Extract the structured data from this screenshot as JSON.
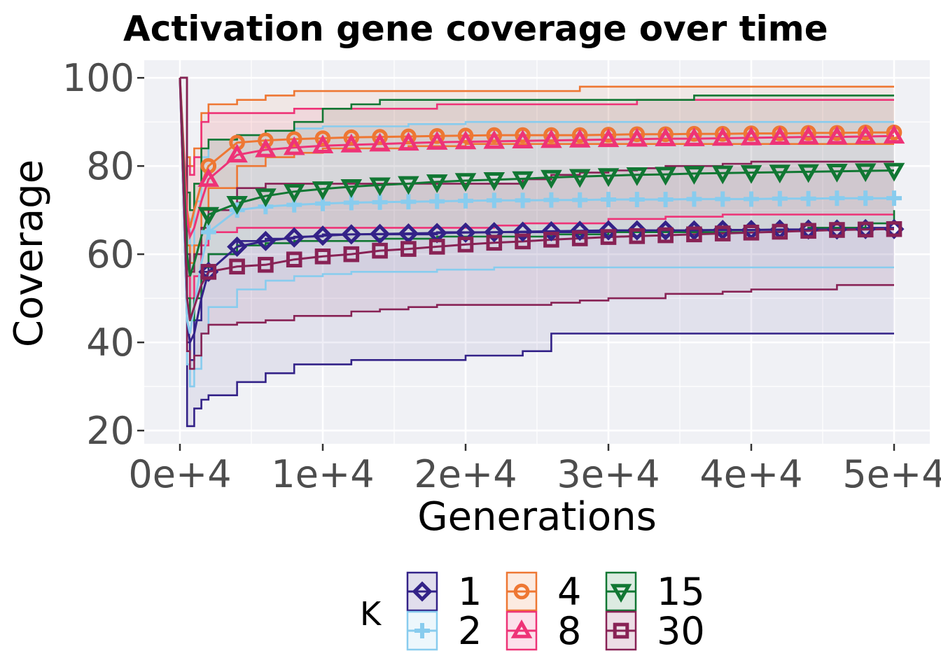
{
  "chart_data": {
    "type": "line",
    "title": "Activation gene coverage over time",
    "xlabel": "Generations",
    "ylabel": "Coverage",
    "xlim": [
      -2500,
      52500
    ],
    "ylim": [
      17,
      104
    ],
    "x_ticks": [
      0,
      10000,
      20000,
      30000,
      40000,
      50000
    ],
    "x_tick_labels": [
      "0e+4",
      "1e+4",
      "2e+4",
      "3e+4",
      "4e+4",
      "5e+4"
    ],
    "y_ticks": [
      20,
      40,
      60,
      80,
      100
    ],
    "y_tick_labels": [
      "20",
      "40",
      "60",
      "80",
      "100"
    ],
    "grid": true,
    "legend": {
      "title": "K",
      "position": "bottom",
      "entries": [
        "1",
        "2",
        "4",
        "8",
        "15",
        "30"
      ]
    },
    "series": [
      {
        "name": "1",
        "color": "#332288",
        "marker": "diamond",
        "x": [
          0,
          500,
          700,
          1000,
          1500,
          2000,
          4000,
          6000,
          8000,
          10000,
          12000,
          14000,
          16000,
          18000,
          20000,
          22000,
          24000,
          26000,
          28000,
          30000,
          32000,
          34000,
          36000,
          38000,
          40000,
          42000,
          44000,
          46000,
          48000,
          50000
        ],
        "median": [
          100,
          45,
          40,
          42,
          50,
          56,
          61.7,
          63,
          63.8,
          64.2,
          64.5,
          64.6,
          64.7,
          64.8,
          64.9,
          65,
          65.1,
          65.2,
          65.3,
          65.4,
          65.4,
          65.4,
          65.4,
          65.5,
          65.5,
          65.6,
          65.6,
          65.6,
          65.7,
          65.7
        ],
        "lower": [
          100,
          21,
          21,
          25,
          27,
          28,
          31,
          33,
          35,
          35,
          36,
          36,
          36,
          36,
          37,
          37,
          38,
          42,
          42,
          42,
          42,
          42,
          42,
          42,
          42,
          42,
          42,
          42,
          42,
          42
        ],
        "upper": [
          100,
          40,
          36,
          45,
          56,
          60,
          63,
          63.5,
          64,
          64.5,
          64.5,
          64.5,
          64.5,
          65,
          65,
          65,
          65,
          65,
          65,
          65,
          65,
          65,
          65.5,
          65.5,
          65.5,
          65.5,
          66,
          66,
          66,
          66
        ]
      },
      {
        "name": "2",
        "color": "#88CCEE",
        "marker": "plus",
        "x": [
          0,
          500,
          700,
          1000,
          1500,
          2000,
          4000,
          6000,
          8000,
          10000,
          12000,
          14000,
          16000,
          18000,
          20000,
          22000,
          24000,
          26000,
          28000,
          30000,
          32000,
          34000,
          36000,
          38000,
          40000,
          42000,
          44000,
          46000,
          48000,
          50000
        ],
        "median": [
          100,
          45,
          42,
          48,
          58,
          65,
          70,
          70.8,
          71.2,
          71.5,
          71.7,
          71.8,
          71.9,
          72,
          72.1,
          72.2,
          72.2,
          72.3,
          72.3,
          72.4,
          72.4,
          72.4,
          72.5,
          72.5,
          72.5,
          72.6,
          72.6,
          72.7,
          72.7,
          72.7
        ],
        "lower": [
          100,
          35,
          30,
          34,
          42,
          48,
          52,
          54,
          55,
          55.5,
          56,
          56,
          56,
          56.5,
          56.5,
          57,
          57,
          57,
          57,
          57,
          57,
          57,
          57,
          57,
          57,
          57,
          57,
          57,
          57,
          57
        ],
        "upper": [
          100,
          68,
          62,
          72,
          82,
          86,
          87,
          88,
          88.5,
          89,
          89,
          89,
          89.5,
          89.5,
          90,
          90,
          90,
          90,
          90,
          90,
          90,
          90,
          90,
          90,
          90,
          90,
          90,
          90,
          90,
          90
        ]
      },
      {
        "name": "4",
        "color": "#EE7733",
        "marker": "circle",
        "x": [
          0,
          500,
          700,
          1000,
          1500,
          2000,
          4000,
          6000,
          8000,
          10000,
          12000,
          14000,
          16000,
          18000,
          20000,
          22000,
          24000,
          26000,
          28000,
          30000,
          32000,
          34000,
          36000,
          38000,
          40000,
          42000,
          44000,
          46000,
          48000,
          50000
        ],
        "median": [
          100,
          70,
          66,
          70,
          76,
          80,
          85.3,
          85.8,
          86.1,
          86.3,
          86.5,
          86.6,
          86.7,
          86.8,
          86.9,
          87,
          87,
          87,
          87,
          87.1,
          87.2,
          87.2,
          87.3,
          87.3,
          87.4,
          87.4,
          87.5,
          87.5,
          87.6,
          87.6
        ],
        "lower": [
          100,
          62,
          58,
          62,
          70,
          75,
          80,
          82,
          83,
          84,
          84,
          84,
          84.5,
          84.5,
          85,
          85,
          85,
          85,
          85,
          85,
          85,
          85,
          85,
          85,
          85,
          85,
          85,
          85,
          85,
          85
        ],
        "upper": [
          100,
          82,
          80,
          84,
          92,
          94,
          95,
          96,
          97,
          97,
          97,
          97,
          97,
          97,
          97,
          97,
          97,
          97,
          98,
          98,
          98,
          98,
          98,
          98,
          98,
          98,
          98,
          98,
          98,
          98
        ]
      },
      {
        "name": "8",
        "color": "#EE3377",
        "marker": "triangle",
        "x": [
          0,
          500,
          700,
          1000,
          1500,
          2000,
          4000,
          6000,
          8000,
          10000,
          12000,
          14000,
          16000,
          18000,
          20000,
          22000,
          24000,
          26000,
          28000,
          30000,
          32000,
          34000,
          36000,
          38000,
          40000,
          42000,
          44000,
          46000,
          48000,
          50000
        ],
        "median": [
          100,
          68,
          64,
          66,
          72,
          77,
          82.5,
          83.7,
          84.2,
          84.6,
          84.8,
          85,
          85.2,
          85.4,
          85.5,
          85.6,
          85.7,
          85.8,
          85.9,
          86,
          86.1,
          86.2,
          86.2,
          86.3,
          86.4,
          86.5,
          86.6,
          86.6,
          86.7,
          86.8
        ],
        "lower": [
          100,
          55,
          50,
          55,
          62,
          65,
          66,
          66,
          66,
          66,
          66,
          66,
          66,
          66,
          66,
          66.5,
          67,
          67,
          67,
          68,
          68,
          68.5,
          68.5,
          69,
          69,
          69,
          69,
          69,
          69,
          69
        ],
        "upper": [
          100,
          80,
          78,
          82,
          90,
          92,
          92,
          92,
          93,
          93,
          93,
          93,
          93,
          94,
          94,
          94,
          94,
          94,
          94,
          94,
          95,
          95,
          95,
          95,
          95,
          95,
          95,
          95,
          95,
          95
        ]
      },
      {
        "name": "15",
        "color": "#117733",
        "marker": "triangle-down",
        "x": [
          0,
          500,
          700,
          1000,
          1500,
          2000,
          4000,
          6000,
          8000,
          10000,
          12000,
          14000,
          16000,
          18000,
          20000,
          22000,
          24000,
          26000,
          28000,
          30000,
          32000,
          34000,
          36000,
          38000,
          40000,
          42000,
          44000,
          46000,
          48000,
          50000
        ],
        "median": [
          100,
          60,
          55,
          58,
          64,
          69,
          71.5,
          73.2,
          74.2,
          74.8,
          75.3,
          75.7,
          76,
          76.4,
          76.7,
          76.9,
          77.1,
          77.4,
          77.6,
          77.8,
          78,
          78.1,
          78.3,
          78.4,
          78.5,
          78.6,
          78.7,
          78.8,
          78.9,
          79
        ],
        "lower": [
          100,
          50,
          45,
          50,
          57,
          60,
          62,
          62.5,
          63,
          63,
          63,
          63.5,
          63.5,
          64,
          64,
          64,
          64,
          64.5,
          64.5,
          65,
          65,
          65,
          65,
          65,
          65,
          65.5,
          66,
          66,
          67,
          70
        ],
        "upper": [
          100,
          74,
          70,
          76,
          84,
          86,
          87,
          88,
          90,
          93,
          94,
          95,
          95,
          95,
          95,
          95,
          95,
          95,
          95,
          95,
          95,
          95,
          96,
          96,
          96,
          96,
          96,
          96,
          96,
          96
        ]
      },
      {
        "name": "30",
        "color": "#882255",
        "marker": "square",
        "x": [
          0,
          500,
          700,
          1000,
          1500,
          2000,
          4000,
          6000,
          8000,
          10000,
          12000,
          14000,
          16000,
          18000,
          20000,
          22000,
          24000,
          26000,
          28000,
          30000,
          32000,
          34000,
          36000,
          38000,
          40000,
          42000,
          44000,
          46000,
          48000,
          50000
        ],
        "median": [
          100,
          50,
          45,
          48,
          53,
          56,
          57.2,
          57.6,
          58.8,
          59.5,
          60,
          60.8,
          61.2,
          61.7,
          62.2,
          62.6,
          62.9,
          63.3,
          63.6,
          63.9,
          64.1,
          64.3,
          64.5,
          64.7,
          64.9,
          65.1,
          65.3,
          65.5,
          65.6,
          65.7
        ],
        "lower": [
          100,
          38,
          34,
          37,
          42,
          44,
          44.5,
          45,
          46,
          46,
          47,
          47.5,
          48,
          48.5,
          48.5,
          48.5,
          48.5,
          49,
          49.5,
          50,
          50,
          51,
          51,
          51.5,
          52,
          52,
          52,
          53,
          53,
          53
        ],
        "upper": [
          100,
          60,
          56,
          60,
          66,
          70,
          75,
          76,
          76,
          76,
          76,
          76,
          76,
          76,
          76,
          76,
          77,
          78,
          78.5,
          79,
          79.5,
          80,
          80,
          80.5,
          81,
          81,
          81,
          81,
          81,
          81
        ]
      }
    ]
  }
}
